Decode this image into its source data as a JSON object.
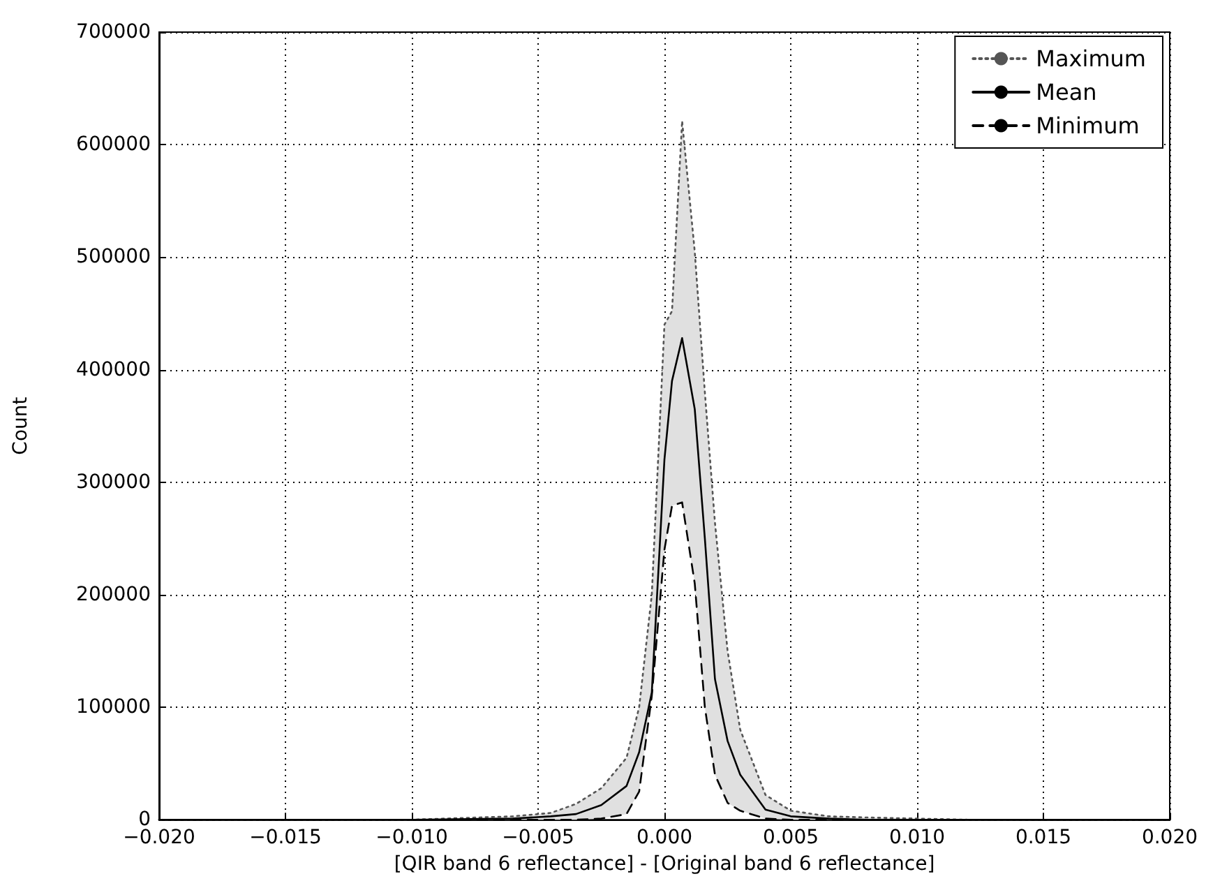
{
  "chart_data": {
    "type": "line",
    "xlabel": "[QIR band 6 reflectance] - [Original band 6 reflectance]",
    "ylabel": "Count",
    "x": [
      -0.02,
      -0.01,
      -0.006,
      -0.0045,
      -0.0035,
      -0.0025,
      -0.0015,
      -0.001,
      -0.0005,
      0,
      0.0003,
      0.0007,
      0.0012,
      0.0016,
      0.002,
      0.0025,
      0.003,
      0.004,
      0.005,
      0.0065,
      0.008,
      0.012,
      0.02
    ],
    "series": [
      {
        "name": "Maximum",
        "color": "#555555",
        "line_style": "dotted",
        "values": [
          0,
          0,
          3000,
          6000,
          14000,
          28000,
          55000,
          100000,
          200000,
          440000,
          452000,
          621000,
          505000,
          380000,
          264000,
          150000,
          80000,
          22000,
          8000,
          3000,
          2000,
          0,
          0
        ]
      },
      {
        "name": "Mean",
        "color": "#000000",
        "line_style": "solid",
        "values": [
          0,
          0,
          1000,
          3000,
          5000,
          13000,
          30000,
          60000,
          113000,
          320000,
          390000,
          428000,
          365000,
          250000,
          125000,
          70000,
          40000,
          9000,
          3000,
          1000,
          0,
          0,
          0
        ],
        "lower": [
          0,
          0,
          0,
          0,
          0,
          1000,
          5000,
          25000,
          110000,
          240000,
          279000,
          282000,
          210000,
          100000,
          40000,
          15000,
          8000,
          1000,
          0,
          0,
          0,
          0,
          0
        ],
        "upper": [
          0,
          0,
          3000,
          6000,
          14000,
          28000,
          55000,
          100000,
          200000,
          440000,
          452000,
          621000,
          505000,
          380000,
          264000,
          150000,
          80000,
          22000,
          8000,
          3000,
          2000,
          0,
          0
        ]
      },
      {
        "name": "Minimum",
        "color": "#000000",
        "line_style": "dashed",
        "values": [
          0,
          0,
          0,
          0,
          0,
          1000,
          5000,
          25000,
          110000,
          240000,
          279000,
          282000,
          210000,
          100000,
          40000,
          15000,
          8000,
          1000,
          0,
          0,
          0,
          0,
          0
        ]
      }
    ],
    "xlim": [
      -0.02,
      0.02
    ],
    "xticks": [
      {
        "value": -0.02,
        "label": "−0.020"
      },
      {
        "value": -0.015,
        "label": "−0.015"
      },
      {
        "value": -0.01,
        "label": "−0.010"
      },
      {
        "value": -0.005,
        "label": "−0.005"
      },
      {
        "value": 0,
        "label": "0.000"
      },
      {
        "value": 0.005,
        "label": "0.005"
      },
      {
        "value": 0.01,
        "label": "0.010"
      },
      {
        "value": 0.015,
        "label": "0.015"
      },
      {
        "value": 0.02,
        "label": "0.020"
      }
    ],
    "ylim": [
      0,
      700000
    ],
    "yticks": [
      0,
      100000,
      200000,
      300000,
      400000,
      500000,
      600000,
      700000
    ],
    "grid": true,
    "legend": "top right",
    "marker": "none"
  }
}
